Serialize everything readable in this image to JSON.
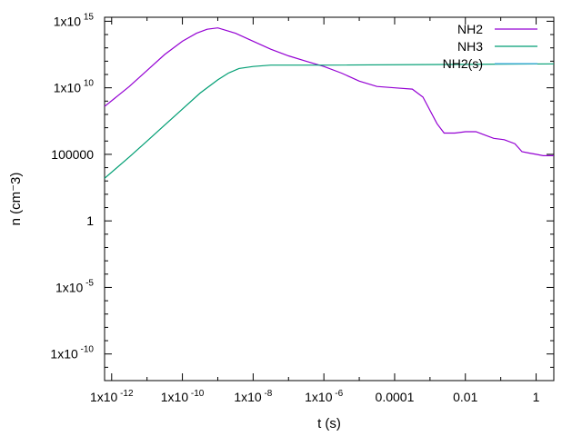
{
  "chart_data": {
    "type": "line",
    "title": "",
    "xlabel": "t (s)",
    "ylabel": "n (cm⁻3)",
    "x_scale": "log",
    "y_scale": "log",
    "xlim_log10": [
      -12.2,
      0.5
    ],
    "ylim_log10": [
      -12,
      15.3
    ],
    "grid": false,
    "legend_position": "top-right",
    "x_ticks": [
      {
        "exp": -12,
        "base": "1x10",
        "sup": "-12"
      },
      {
        "exp": -10,
        "base": "1x10",
        "sup": "-10"
      },
      {
        "exp": -8,
        "base": "1x10",
        "sup": "-8"
      },
      {
        "exp": -6,
        "base": "1x10",
        "sup": "-6"
      },
      {
        "exp": -4,
        "base": "0.0001",
        "sup": ""
      },
      {
        "exp": -2,
        "base": "0.01",
        "sup": ""
      },
      {
        "exp": 0,
        "base": "1",
        "sup": ""
      }
    ],
    "y_ticks": [
      {
        "exp": 15,
        "base": "1x10",
        "sup": "15"
      },
      {
        "exp": 10,
        "base": "1x10",
        "sup": "10"
      },
      {
        "exp": 5,
        "base": "100000",
        "sup": ""
      },
      {
        "exp": 0,
        "base": "1",
        "sup": ""
      },
      {
        "exp": -5,
        "base": "1x10",
        "sup": "-5"
      },
      {
        "exp": -10,
        "base": "1x10",
        "sup": "-10"
      }
    ],
    "series": [
      {
        "name": "NH2",
        "color": "#9400d3",
        "points_log10": [
          [
            -12.2,
            8.6
          ],
          [
            -11.5,
            10.1
          ],
          [
            -11.0,
            11.3
          ],
          [
            -10.5,
            12.5
          ],
          [
            -10.0,
            13.5
          ],
          [
            -9.6,
            14.1
          ],
          [
            -9.3,
            14.4
          ],
          [
            -9.0,
            14.5
          ],
          [
            -8.5,
            14.1
          ],
          [
            -8.0,
            13.5
          ],
          [
            -7.5,
            12.9
          ],
          [
            -7.0,
            12.4
          ],
          [
            -6.5,
            12.0
          ],
          [
            -6.0,
            11.6
          ],
          [
            -5.5,
            11.1
          ],
          [
            -5.0,
            10.5
          ],
          [
            -4.5,
            10.1
          ],
          [
            -4.0,
            10.0
          ],
          [
            -3.5,
            9.9
          ],
          [
            -3.2,
            9.3
          ],
          [
            -3.0,
            8.3
          ],
          [
            -2.8,
            7.3
          ],
          [
            -2.6,
            6.6
          ],
          [
            -2.3,
            6.6
          ],
          [
            -2.0,
            6.7
          ],
          [
            -1.7,
            6.7
          ],
          [
            -1.5,
            6.5
          ],
          [
            -1.2,
            6.2
          ],
          [
            -0.9,
            6.1
          ],
          [
            -0.6,
            5.8
          ],
          [
            -0.4,
            5.2
          ],
          [
            -0.2,
            5.1
          ],
          [
            0.0,
            5.0
          ],
          [
            0.2,
            4.9
          ],
          [
            0.5,
            4.9
          ]
        ]
      },
      {
        "name": "NH3",
        "color": "#009e73",
        "points_log10": [
          [
            -12.2,
            3.2
          ],
          [
            -11.5,
            4.8
          ],
          [
            -11.0,
            6.0
          ],
          [
            -10.5,
            7.2
          ],
          [
            -10.0,
            8.4
          ],
          [
            -9.5,
            9.6
          ],
          [
            -9.0,
            10.6
          ],
          [
            -8.7,
            11.1
          ],
          [
            -8.4,
            11.45
          ],
          [
            -8.0,
            11.6
          ],
          [
            -7.5,
            11.7
          ],
          [
            -6.0,
            11.7
          ],
          [
            0.5,
            11.8
          ]
        ]
      },
      {
        "name": "NH2(s)",
        "color": "#56b4e9",
        "points_log10": []
      }
    ]
  }
}
